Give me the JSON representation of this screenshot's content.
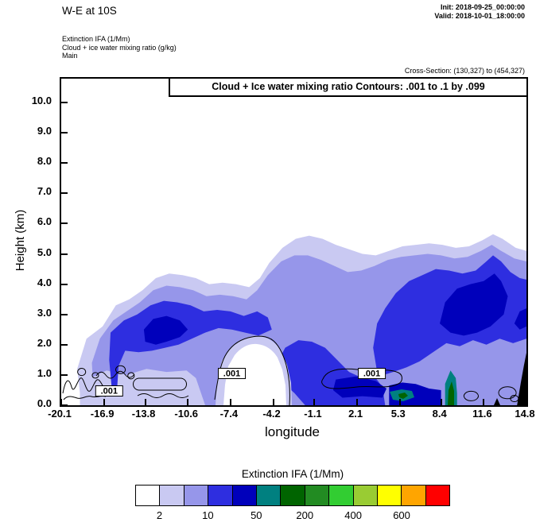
{
  "header": {
    "title": "W-E at 10S",
    "init": "Init: 2018-09-25_00:00:00",
    "valid": "Valid: 2018-10-01_18:00:00",
    "field_line_1": "Extinction IFA  (1/Mm)",
    "field_line_2": "Cloud + ice water mixing ratio  (g/kg)",
    "field_line_3": "Main",
    "cross_section": "Cross-Section: (130,327) to (454,327)"
  },
  "chart_data": {
    "type": "filled_contour_cross_section",
    "title": "W-E at 10S",
    "contour_info": "Cloud + Ice water mixing ratio Contours: .001 to .1 by .099",
    "fill_field": {
      "name": "Extinction IFA",
      "units": "1/Mm"
    },
    "line_field": {
      "name": "Cloud + Ice water mixing ratio",
      "units": "g/kg",
      "levels_from": 0.001,
      "levels_to": 0.1,
      "levels_by": 0.099
    },
    "x": {
      "label": "longitude",
      "range": [
        -20.1,
        14.8
      ],
      "ticks": [
        "-20.1",
        "-16.9",
        "-13.8",
        "-10.6",
        "-7.4",
        "-4.2",
        "-1.1",
        "2.1",
        "5.3",
        "8.4",
        "11.6",
        "14.8"
      ]
    },
    "y": {
      "label": "Height (km)",
      "range": [
        0,
        10.8
      ],
      "ticks": [
        "0.0",
        "1.0",
        "2.0",
        "3.0",
        "4.0",
        "5.0",
        "6.0",
        "7.0",
        "8.0",
        "9.0",
        "10.0"
      ]
    },
    "colorbar": {
      "title": "Extinction IFA (1/Mm)",
      "colors": [
        "#ffffff",
        "#c9c9f2",
        "#9696ea",
        "#2e2ee0",
        "#0000bb",
        "#008080",
        "#006400",
        "#228b22",
        "#32cd32",
        "#99cc33",
        "#ffff00",
        "#ffa500",
        "#ff0000"
      ],
      "tick_labels": [
        "2",
        "10",
        "50",
        "200",
        "400",
        "600"
      ],
      "tick_boundary_indices": [
        1,
        3,
        5,
        7,
        9,
        11
      ]
    },
    "contour_label_text": ".001",
    "contour_labels": [
      {
        "lon": -16.6,
        "height_km": 0.45
      },
      {
        "lon": -7.4,
        "height_km": 1.05
      },
      {
        "lon": 3.2,
        "height_km": 1.05
      }
    ],
    "grid": false,
    "features": [
      {
        "fill_per_Mm": "2-10",
        "description": "broad cloud/extinction band spanning most of the section",
        "lon_range": [
          -18.7,
          14.8
        ],
        "height_km_range": [
          0,
          5.7
        ]
      },
      {
        "fill_per_Mm": "10-20",
        "description": "elevated band west of -4",
        "lon_range": [
          -16.4,
          -4.2
        ],
        "height_km_range": [
          1.7,
          3.4
        ]
      },
      {
        "fill_per_Mm": "20-50",
        "description": "embedded core near -12",
        "lon_range": [
          -13.9,
          -10.6
        ],
        "height_km_range": [
          2.0,
          3.0
        ]
      },
      {
        "fill_per_Mm": "10-20",
        "description": "central low-level plume",
        "lon_range": [
          -3.9,
          4.2
        ],
        "height_km_range": [
          0,
          2.2
        ]
      },
      {
        "fill_per_Mm": "10-20",
        "description": "deep layer on eastern half",
        "lon_range": [
          3.3,
          14.8
        ],
        "height_km_range": [
          1.0,
          5.0
        ]
      },
      {
        "fill_per_Mm": "20-50",
        "description": "strong elevated core near 11",
        "lon_range": [
          8.3,
          13.4
        ],
        "height_km_range": [
          2.3,
          4.3
        ]
      },
      {
        "fill_per_Mm": "50-200",
        "description": "near-surface maximum with teal/green patches",
        "lon_range": [
          0.3,
          9.6
        ],
        "height_km_range": [
          0,
          1.2
        ]
      },
      {
        "fill_per_Mm": "<2",
        "description": "clear pocket",
        "lon_range": [
          -7.8,
          -3.3
        ],
        "height_km_range": [
          0,
          2.1
        ]
      },
      {
        "fill_per_Mm": "terrain-mask",
        "description": "black masked area at right edge",
        "lon_range": [
          14.1,
          14.8
        ],
        "height_km_range": [
          0,
          1.9
        ]
      }
    ]
  }
}
